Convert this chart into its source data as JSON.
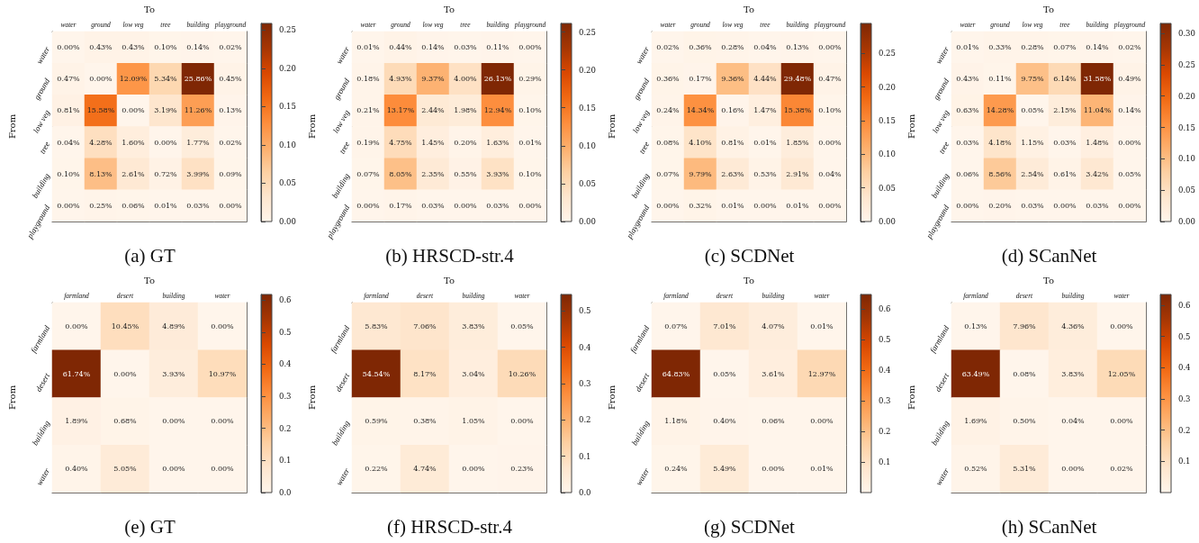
{
  "chart_data": [
    {
      "type": "heatmap",
      "title": "(a) GT",
      "xlabel": "To",
      "ylabel": "From",
      "categories": [
        "water",
        "ground",
        "low veg",
        "tree",
        "building",
        "playground"
      ],
      "y_categories": [
        "water",
        "ground",
        "low veg",
        "tree",
        "building",
        "playground"
      ],
      "cells": [
        [
          0,
          0.0043,
          0.0043,
          0.001,
          0.0014,
          0.0002
        ],
        [
          0.0047,
          0,
          0.1209,
          0.0534,
          0.2586,
          0.0045
        ],
        [
          0.0081,
          0.1558,
          0,
          0.0319,
          0.1126,
          0.0013
        ],
        [
          0.0004,
          0.0428,
          0.016,
          0,
          0.0177,
          0.0002
        ],
        [
          0.001,
          0.0813,
          0.0261,
          0.0072,
          0.0399,
          0.0009
        ],
        [
          0,
          0.0025,
          0.0006,
          0.0001,
          0.0003,
          0
        ]
      ],
      "cell_labels": [
        [
          "0.00%",
          "0.43%",
          "0.43%",
          "0.10%",
          "0.14%",
          "0.02%"
        ],
        [
          "0.47%",
          "0.00%",
          "12.09%",
          "5.34%",
          "25.86%",
          "0.45%"
        ],
        [
          "0.81%",
          "15.58%",
          "0.00%",
          "3.19%",
          "11.26%",
          "0.13%"
        ],
        [
          "0.04%",
          "4.28%",
          "1.60%",
          "0.00%",
          "1.77%",
          "0.02%"
        ],
        [
          "0.10%",
          "8.13%",
          "2.61%",
          "0.72%",
          "3.99%",
          "0.09%"
        ],
        [
          "0.00%",
          "0.25%",
          "0.06%",
          "0.01%",
          "0.03%",
          "0.00%"
        ]
      ],
      "clim": [
        0,
        0.2586
      ],
      "cticks": [
        {
          "value": 0,
          "label": "0.00"
        },
        0.05,
        {
          "value": 0.1,
          "label": "0.10"
        },
        0.15,
        {
          "value": 0.2,
          "label": "0.20"
        },
        0.25
      ]
    },
    {
      "type": "heatmap",
      "title": "(b) HRSCD-str.4",
      "xlabel": "To",
      "ylabel": "From",
      "categories": [
        "water",
        "ground",
        "low veg",
        "tree",
        "building",
        "playground"
      ],
      "y_categories": [
        "water",
        "ground",
        "low veg",
        "tree",
        "building",
        "playground"
      ],
      "cells": [
        [
          0.0001,
          0.0044,
          0.0014,
          0.0003,
          0.0011,
          0
        ],
        [
          0.0018,
          0.0493,
          0.0937,
          0.04,
          0.2613,
          0.0029
        ],
        [
          0.0021,
          0.1317,
          0.0244,
          0.0198,
          0.1294,
          0.001
        ],
        [
          0.0019,
          0.0475,
          0.0145,
          0.002,
          0.0163,
          0.0001
        ],
        [
          0.0007,
          0.0805,
          0.0235,
          0.0055,
          0.0393,
          0.001
        ],
        [
          0,
          0.0017,
          0.0003,
          0,
          0.0003,
          0
        ]
      ],
      "cell_labels": [
        [
          "0.01%",
          "0.44%",
          "0.14%",
          "0.03%",
          "0.11%",
          "0.00%"
        ],
        [
          "0.18%",
          "4.93%",
          "9.37%",
          "4.00%",
          "26.13%",
          "0.29%"
        ],
        [
          "0.21%",
          "13.17%",
          "2.44%",
          "1.98%",
          "12.94%",
          "0.10%"
        ],
        [
          "0.19%",
          "4.75%",
          "1.45%",
          "0.20%",
          "1.63%",
          "0.01%"
        ],
        [
          "0.07%",
          "8.05%",
          "2.35%",
          "0.55%",
          "3.93%",
          "0.10%"
        ],
        [
          "0.00%",
          "0.17%",
          "0.03%",
          "0.00%",
          "0.03%",
          "0.00%"
        ]
      ],
      "clim": [
        0,
        0.2613
      ],
      "cticks": [
        {
          "value": 0,
          "label": "0.00"
        },
        0.05,
        {
          "value": 0.1,
          "label": "0.10"
        },
        0.15,
        {
          "value": 0.2,
          "label": "0.20"
        },
        0.25
      ]
    },
    {
      "type": "heatmap",
      "title": "(c) SCDNet",
      "xlabel": "To",
      "ylabel": "From",
      "categories": [
        "water",
        "ground",
        "low veg",
        "tree",
        "building",
        "playground"
      ],
      "y_categories": [
        "water",
        "ground",
        "low veg",
        "tree",
        "building",
        "playground"
      ],
      "cells": [
        [
          0.0002,
          0.0036,
          0.0028,
          0.0004,
          0.0013,
          0
        ],
        [
          0.0036,
          0.0017,
          0.0936,
          0.0444,
          0.2948,
          0.0047
        ],
        [
          0.0024,
          0.1434,
          0.0016,
          0.0147,
          0.1538,
          0.001
        ],
        [
          0.0008,
          0.041,
          0.0081,
          0.0001,
          0.0185,
          0
        ],
        [
          0.0007,
          0.0979,
          0.0263,
          0.0053,
          0.0291,
          0.0004
        ],
        [
          0,
          0.0032,
          0.0001,
          0,
          0.0001,
          0
        ]
      ],
      "cell_labels": [
        [
          "0.02%",
          "0.36%",
          "0.28%",
          "0.04%",
          "0.13%",
          "0.00%"
        ],
        [
          "0.36%",
          "0.17%",
          "9.36%",
          "4.44%",
          "29.48%",
          "0.47%"
        ],
        [
          "0.24%",
          "14.34%",
          "0.16%",
          "1.47%",
          "15.38%",
          "0.10%"
        ],
        [
          "0.08%",
          "4.10%",
          "0.81%",
          "0.01%",
          "1.85%",
          "0.00%"
        ],
        [
          "0.07%",
          "9.79%",
          "2.63%",
          "0.53%",
          "2.91%",
          "0.04%"
        ],
        [
          "0.00%",
          "0.32%",
          "0.01%",
          "0.00%",
          "0.01%",
          "0.00%"
        ]
      ],
      "clim": [
        0,
        0.2948
      ],
      "cticks": [
        {
          "value": 0,
          "label": "0.00"
        },
        0.05,
        {
          "value": 0.1,
          "label": "0.10"
        },
        0.15,
        {
          "value": 0.2,
          "label": "0.20"
        },
        0.25
      ]
    },
    {
      "type": "heatmap",
      "title": "(d) SCanNet",
      "xlabel": "To",
      "ylabel": "From",
      "categories": [
        "water",
        "ground",
        "low veg",
        "tree",
        "building",
        "playground"
      ],
      "y_categories": [
        "water",
        "ground",
        "low veg",
        "tree",
        "building",
        "playground"
      ],
      "cells": [
        [
          0.0001,
          0.0033,
          0.0028,
          0.0007,
          0.0014,
          0.0002
        ],
        [
          0.0043,
          0.0011,
          0.0975,
          0.0614,
          0.3158,
          0.0049
        ],
        [
          0.0063,
          0.1428,
          0.0005,
          0.0215,
          0.1104,
          0.0014
        ],
        [
          0.0003,
          0.0418,
          0.0115,
          0.0003,
          0.0148,
          0
        ],
        [
          0.0006,
          0.0856,
          0.0254,
          0.0061,
          0.0342,
          0.0005
        ],
        [
          0,
          0.002,
          0.0003,
          0,
          0.0003,
          0
        ]
      ],
      "cell_labels": [
        [
          "0.01%",
          "0.33%",
          "0.28%",
          "0.07%",
          "0.14%",
          "0.02%"
        ],
        [
          "0.43%",
          "0.11%",
          "9.75%",
          "6.14%",
          "31.58%",
          "0.49%"
        ],
        [
          "0.63%",
          "14.28%",
          "0.05%",
          "2.15%",
          "11.04%",
          "0.14%"
        ],
        [
          "0.03%",
          "4.18%",
          "1.15%",
          "0.03%",
          "1.48%",
          "0.00%"
        ],
        [
          "0.06%",
          "8.56%",
          "2.54%",
          "0.61%",
          "3.42%",
          "0.05%"
        ],
        [
          "0.00%",
          "0.20%",
          "0.03%",
          "0.00%",
          "0.03%",
          "0.00%"
        ]
      ],
      "clim": [
        0,
        0.3158
      ],
      "cticks": [
        {
          "value": 0,
          "label": "0.00"
        },
        0.05,
        {
          "value": 0.1,
          "label": "0.10"
        },
        0.15,
        {
          "value": 0.2,
          "label": "0.20"
        },
        0.25,
        {
          "value": 0.3,
          "label": "0.30"
        }
      ]
    },
    {
      "type": "heatmap",
      "title": "(e) GT",
      "xlabel": "To",
      "ylabel": "From",
      "categories": [
        "farmland",
        "desert",
        "building",
        "water"
      ],
      "y_categories": [
        "farmland",
        "desert",
        "building",
        "water"
      ],
      "cells": [
        [
          0,
          0.1045,
          0.0489,
          0
        ],
        [
          0.6174,
          0,
          0.0393,
          0.1097
        ],
        [
          0.0189,
          0.0068,
          0,
          0
        ],
        [
          0.004,
          0.0505,
          0,
          0
        ]
      ],
      "cell_labels": [
        [
          "0.00%",
          "10.45%",
          "4.89%",
          "0.00%"
        ],
        [
          "61.74%",
          "0.00%",
          "3.93%",
          "10.97%"
        ],
        [
          "1.89%",
          "0.68%",
          "0.00%",
          "0.00%"
        ],
        [
          "0.40%",
          "5.05%",
          "0.00%",
          "0.00%"
        ]
      ],
      "clim": [
        0,
        0.6174
      ],
      "cticks": [
        {
          "value": 0,
          "label": "0.0"
        },
        0.1,
        0.2,
        0.3,
        0.4,
        0.5,
        0.6
      ]
    },
    {
      "type": "heatmap",
      "title": "(f) HRSCD-str.4",
      "xlabel": "To",
      "ylabel": "From",
      "categories": [
        "farmland",
        "desert",
        "building",
        "water"
      ],
      "y_categories": [
        "farmland",
        "desert",
        "building",
        "water"
      ],
      "cells": [
        [
          0.0583,
          0.0706,
          0.0383,
          0.0005
        ],
        [
          0.5454,
          0.0817,
          0.0304,
          0.1026
        ],
        [
          0.0059,
          0.0038,
          0.0105,
          0
        ],
        [
          0.0022,
          0.0474,
          0,
          0.0023
        ]
      ],
      "cell_labels": [
        [
          "5.83%",
          "7.06%",
          "3.83%",
          "0.05%"
        ],
        [
          "54.54%",
          "8.17%",
          "3.04%",
          "10.26%"
        ],
        [
          "0.59%",
          "0.38%",
          "1.05%",
          "0.00%"
        ],
        [
          "0.22%",
          "4.74%",
          "0.00%",
          "0.23%"
        ]
      ],
      "clim": [
        0,
        0.5454
      ],
      "cticks": [
        {
          "value": 0,
          "label": "0.0"
        },
        0.1,
        0.2,
        0.3,
        0.4,
        0.5
      ]
    },
    {
      "type": "heatmap",
      "title": "(g) SCDNet",
      "xlabel": "To",
      "ylabel": "From",
      "categories": [
        "farmland",
        "desert",
        "building",
        "water"
      ],
      "y_categories": [
        "farmland",
        "desert",
        "building",
        "water"
      ],
      "cells": [
        [
          0.0007,
          0.0701,
          0.0407,
          0.0001
        ],
        [
          0.6483,
          0.0005,
          0.0361,
          0.1297
        ],
        [
          0.0118,
          0.004,
          0.0006,
          0
        ],
        [
          0.0024,
          0.0549,
          0,
          0.0001
        ]
      ],
      "cell_labels": [
        [
          "0.07%",
          "7.01%",
          "4.07%",
          "0.01%"
        ],
        [
          "64.83%",
          "0.05%",
          "3.61%",
          "12.97%"
        ],
        [
          "1.18%",
          "0.40%",
          "0.06%",
          "0.00%"
        ],
        [
          "0.24%",
          "5.49%",
          "0.00%",
          "0.01%"
        ]
      ],
      "clim": [
        0,
        0.6483
      ],
      "cticks": [
        0.1,
        0.2,
        0.3,
        0.4,
        0.5,
        0.6
      ]
    },
    {
      "type": "heatmap",
      "title": "(h) SCanNet",
      "xlabel": "To",
      "ylabel": "From",
      "categories": [
        "farmland",
        "desert",
        "building",
        "water"
      ],
      "y_categories": [
        "farmland",
        "desert",
        "building",
        "water"
      ],
      "cells": [
        [
          0.0013,
          0.0796,
          0.0436,
          0
        ],
        [
          0.6349,
          0.0008,
          0.0383,
          0.1205
        ],
        [
          0.0169,
          0.005,
          0.0004,
          0
        ],
        [
          0.0052,
          0.0531,
          0,
          0.0002
        ]
      ],
      "cell_labels": [
        [
          "0.13%",
          "7.96%",
          "4.36%",
          "0.00%"
        ],
        [
          "63.49%",
          "0.08%",
          "3.83%",
          "12.05%"
        ],
        [
          "1.69%",
          "0.50%",
          "0.04%",
          "0.00%"
        ],
        [
          "0.52%",
          "5.31%",
          "0.00%",
          "0.02%"
        ]
      ],
      "clim": [
        0,
        0.6349
      ],
      "cticks": [
        0.1,
        0.2,
        0.3,
        0.4,
        0.5,
        0.6
      ]
    }
  ]
}
